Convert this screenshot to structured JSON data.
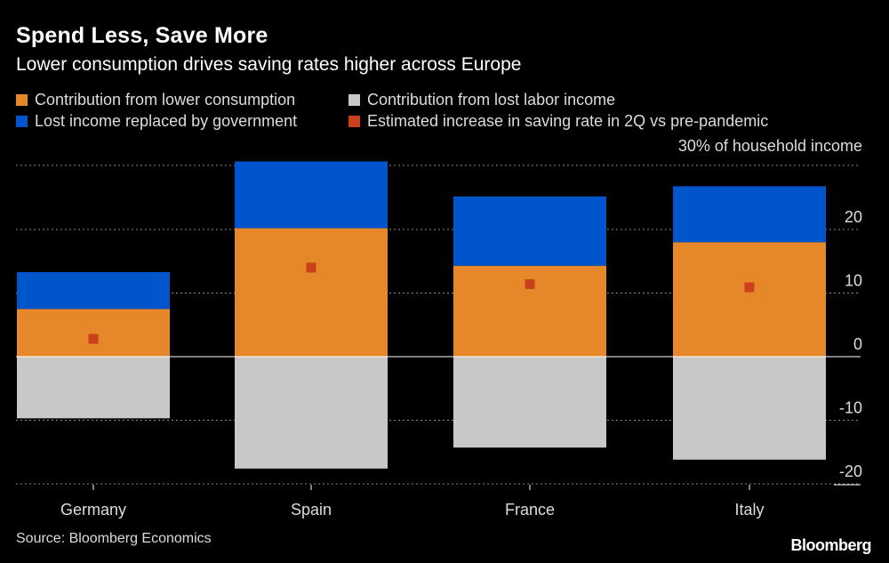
{
  "header": {
    "title": "Spend Less, Save More",
    "subtitle": "Lower consumption drives saving rates higher across Europe"
  },
  "legend": [
    {
      "label": "Contribution from lower consumption",
      "color": "#e6882a"
    },
    {
      "label": "Contribution from lost labor income",
      "color": "#c8c8c8"
    },
    {
      "label": "Lost income replaced by government",
      "color": "#0055cc"
    },
    {
      "label": "Estimated increase in saving rate in 2Q vs pre-pandemic",
      "color": "#c9401b"
    }
  ],
  "unit_label": "30% of household income",
  "footer": {
    "source": "Source: Bloomberg Economics",
    "brand": "Bloomberg"
  },
  "chart_data": {
    "type": "bar",
    "stacked": true,
    "categories": [
      "Germany",
      "Spain",
      "France",
      "Italy"
    ],
    "series": [
      {
        "name": "Contribution from lower consumption",
        "color": "#e6882a",
        "values": [
          7.5,
          20.2,
          14.3,
          18.0
        ]
      },
      {
        "name": "Contribution from lost labor income",
        "color": "#c8c8c8",
        "values": [
          -9.7,
          -17.6,
          -14.3,
          -16.2
        ]
      },
      {
        "name": "Lost income replaced by government",
        "color": "#0055cc",
        "values": [
          5.8,
          10.5,
          10.9,
          8.8
        ]
      },
      {
        "name": "Estimated increase in saving rate in 2Q vs pre-pandemic",
        "color": "#c9401b",
        "type": "marker",
        "values": [
          2.8,
          14.0,
          11.4,
          10.9
        ]
      }
    ],
    "ylim": [
      -20,
      30
    ],
    "yticks": [
      -20,
      -10,
      0,
      10,
      20
    ],
    "grid": true,
    "y_axis_side": "right",
    "legend_position": "top-left"
  }
}
